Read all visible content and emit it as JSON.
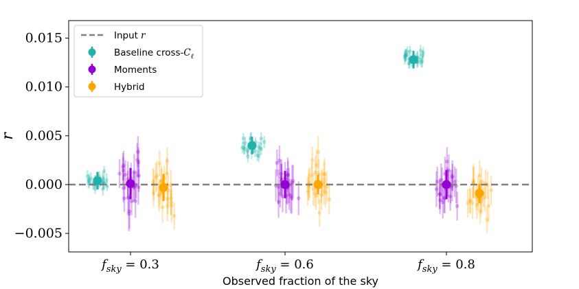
{
  "chart_data": {
    "type": "scatter",
    "title": "",
    "xlabel": "Observed fraction of the sky",
    "ylabel": "r",
    "ylim": [
      -0.0069,
      0.0168
    ],
    "yticks": [
      -0.005,
      0.0,
      0.005,
      0.01,
      0.015
    ],
    "ytick_labels": [
      "−0.005",
      "0.000",
      "0.005",
      "0.010",
      "0.015"
    ],
    "categories": [
      "f_sky = 0.3",
      "f_sky = 0.6",
      "f_sky = 0.8"
    ],
    "category_labels": [
      {
        "base": "f",
        "sub": "sky",
        "rest": " = 0.3"
      },
      {
        "base": "f",
        "sub": "sky",
        "rest": " = 0.6"
      },
      {
        "base": "f",
        "sub": "sky",
        "rest": " = 0.8"
      }
    ],
    "reference_line": {
      "name": "Input r",
      "value": 0.0,
      "style": "dashed",
      "color": "#808080"
    },
    "legend": {
      "placement": "top-left",
      "entries": [
        {
          "label": "Input",
          "math": "r",
          "kind": "line",
          "color": "#808080"
        },
        {
          "label": "Baseline cross-",
          "math": "C",
          "math_sub": "ℓ",
          "kind": "errorbar",
          "color": "#20B2AA"
        },
        {
          "label": "Moments",
          "math": "",
          "kind": "errorbar",
          "color": "#9400D3"
        },
        {
          "label": "Hybrid",
          "math": "",
          "kind": "errorbar",
          "color": "#FFA500"
        }
      ]
    },
    "series": [
      {
        "name": "Baseline cross-C_l",
        "color": "#20B2AA",
        "means": [
          {
            "category": "f_sky = 0.3",
            "value": 0.0004,
            "err": 0.0009
          },
          {
            "category": "f_sky = 0.6",
            "value": 0.004,
            "err": 0.0009
          },
          {
            "category": "f_sky = 0.8",
            "value": 0.0128,
            "err": 0.0009
          }
        ]
      },
      {
        "name": "Moments",
        "color": "#9400D3",
        "means": [
          {
            "category": "f_sky = 0.3",
            "value": 0.0001,
            "err": 0.0016
          },
          {
            "category": "f_sky = 0.6",
            "value": 0.0,
            "err": 0.0014
          },
          {
            "category": "f_sky = 0.8",
            "value": 0.0,
            "err": 0.0015
          }
        ]
      },
      {
        "name": "Hybrid",
        "color": "#FFA500",
        "means": [
          {
            "category": "f_sky = 0.3",
            "value": -0.0003,
            "err": 0.0014
          },
          {
            "category": "f_sky = 0.6",
            "value": 0.0,
            "err": 0.001
          },
          {
            "category": "f_sky = 0.8",
            "value": -0.0009,
            "err": 0.001
          }
        ]
      }
    ],
    "realizations": {
      "description": "faint individual simulation points with error bars around each mean",
      "points_per_group": 24,
      "spread": [
        {
          "series": "Baseline cross-C_l",
          "sigma": 0.0006,
          "err": 0.0006
        },
        {
          "series": "Moments",
          "sigma": 0.0016,
          "err": 0.0016
        },
        {
          "series": "Hybrid",
          "sigma": 0.0015,
          "err": 0.0015
        }
      ]
    }
  }
}
